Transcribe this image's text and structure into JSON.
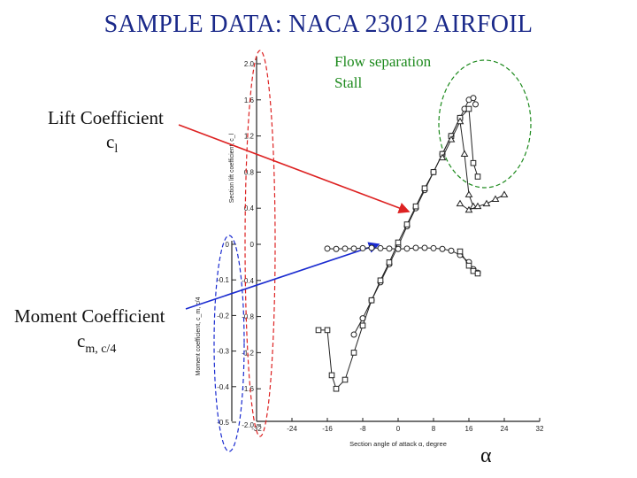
{
  "slide": {
    "title": "SAMPLE DATA: NACA 23012 AIRFOIL",
    "flow_separation": "Flow separation",
    "stall": "Stall",
    "lift_label": "Lift Coefficient",
    "lift_symbol": "c",
    "lift_sub": "l",
    "moment_label": "Moment Coefficient",
    "moment_symbol": "c",
    "moment_sub": "m, c/4",
    "alpha_symbol": "α"
  },
  "chart_data": {
    "type": "line",
    "xlabel": "Section angle of attack α, degree",
    "ylabel_lift": "Section lift coefficient, c_l",
    "ylabel_moment": "Moment coefficient, c_m, c/4",
    "x_ticks": [
      "-32",
      "-24",
      "-16",
      "-8",
      "0",
      "8",
      "16",
      "24",
      "32"
    ],
    "xlim": [
      -32,
      32
    ],
    "lift_ticks": [
      "2.0",
      "1.6",
      "1.2",
      "0.8",
      "0.4",
      "0",
      "-0.4",
      "-0.8",
      "-1.2",
      "-1.6",
      "-2.0"
    ],
    "lift_ylim": [
      -2.0,
      2.0
    ],
    "moment_ticks": [
      "0",
      "-0.1",
      "-0.2",
      "-0.3",
      "-0.4",
      "-0.5"
    ],
    "moment_ylim": [
      -0.5,
      0
    ],
    "series": [
      {
        "group": "lift",
        "marker": "circle",
        "x": [
          -10,
          -8,
          -6,
          -4,
          -2,
          0,
          2,
          4,
          6,
          8,
          10,
          12,
          14,
          15,
          16,
          17,
          17.5
        ],
        "y": [
          -1.0,
          -0.82,
          -0.62,
          -0.42,
          -0.22,
          -0.02,
          0.2,
          0.4,
          0.6,
          0.8,
          1.0,
          1.2,
          1.4,
          1.5,
          1.6,
          1.62,
          1.55
        ]
      },
      {
        "group": "lift",
        "marker": "square",
        "x": [
          -18,
          -16,
          -15,
          -14,
          -12,
          -10,
          -8,
          -6,
          -4,
          -2,
          0,
          2,
          4,
          6,
          8,
          10,
          12,
          14,
          16,
          17,
          18
        ],
        "y": [
          -0.95,
          -0.95,
          -1.45,
          -1.6,
          -1.5,
          -1.2,
          -0.9,
          -0.62,
          -0.4,
          -0.2,
          0.02,
          0.22,
          0.42,
          0.62,
          0.8,
          1.0,
          1.2,
          1.4,
          1.5,
          0.9,
          0.75
        ]
      },
      {
        "group": "lift",
        "marker": "triangle",
        "x": [
          10,
          12,
          14,
          15,
          16,
          17
        ],
        "y": [
          0.96,
          1.16,
          1.36,
          1.0,
          0.55,
          0.42
        ]
      },
      {
        "group": "lift",
        "marker": "triangle",
        "x": [
          14,
          16,
          18,
          20,
          22,
          24
        ],
        "y": [
          0.45,
          0.38,
          0.42,
          0.45,
          0.5,
          0.55
        ]
      },
      {
        "group": "moment",
        "marker": "circle",
        "x": [
          -16,
          -14,
          -12,
          -10,
          -8,
          -6,
          -4,
          -2,
          0,
          2,
          4,
          6,
          8,
          10,
          12,
          14,
          16,
          17,
          18
        ],
        "y": [
          -0.012,
          -0.013,
          -0.012,
          -0.012,
          -0.011,
          -0.01,
          -0.011,
          -0.012,
          -0.013,
          -0.012,
          -0.01,
          -0.01,
          -0.011,
          -0.013,
          -0.018,
          -0.03,
          -0.05,
          -0.07,
          -0.08
        ]
      },
      {
        "group": "moment",
        "marker": "square",
        "x": [
          14,
          16,
          17,
          18
        ],
        "y": [
          -0.02,
          -0.06,
          -0.075,
          -0.082
        ]
      }
    ]
  }
}
